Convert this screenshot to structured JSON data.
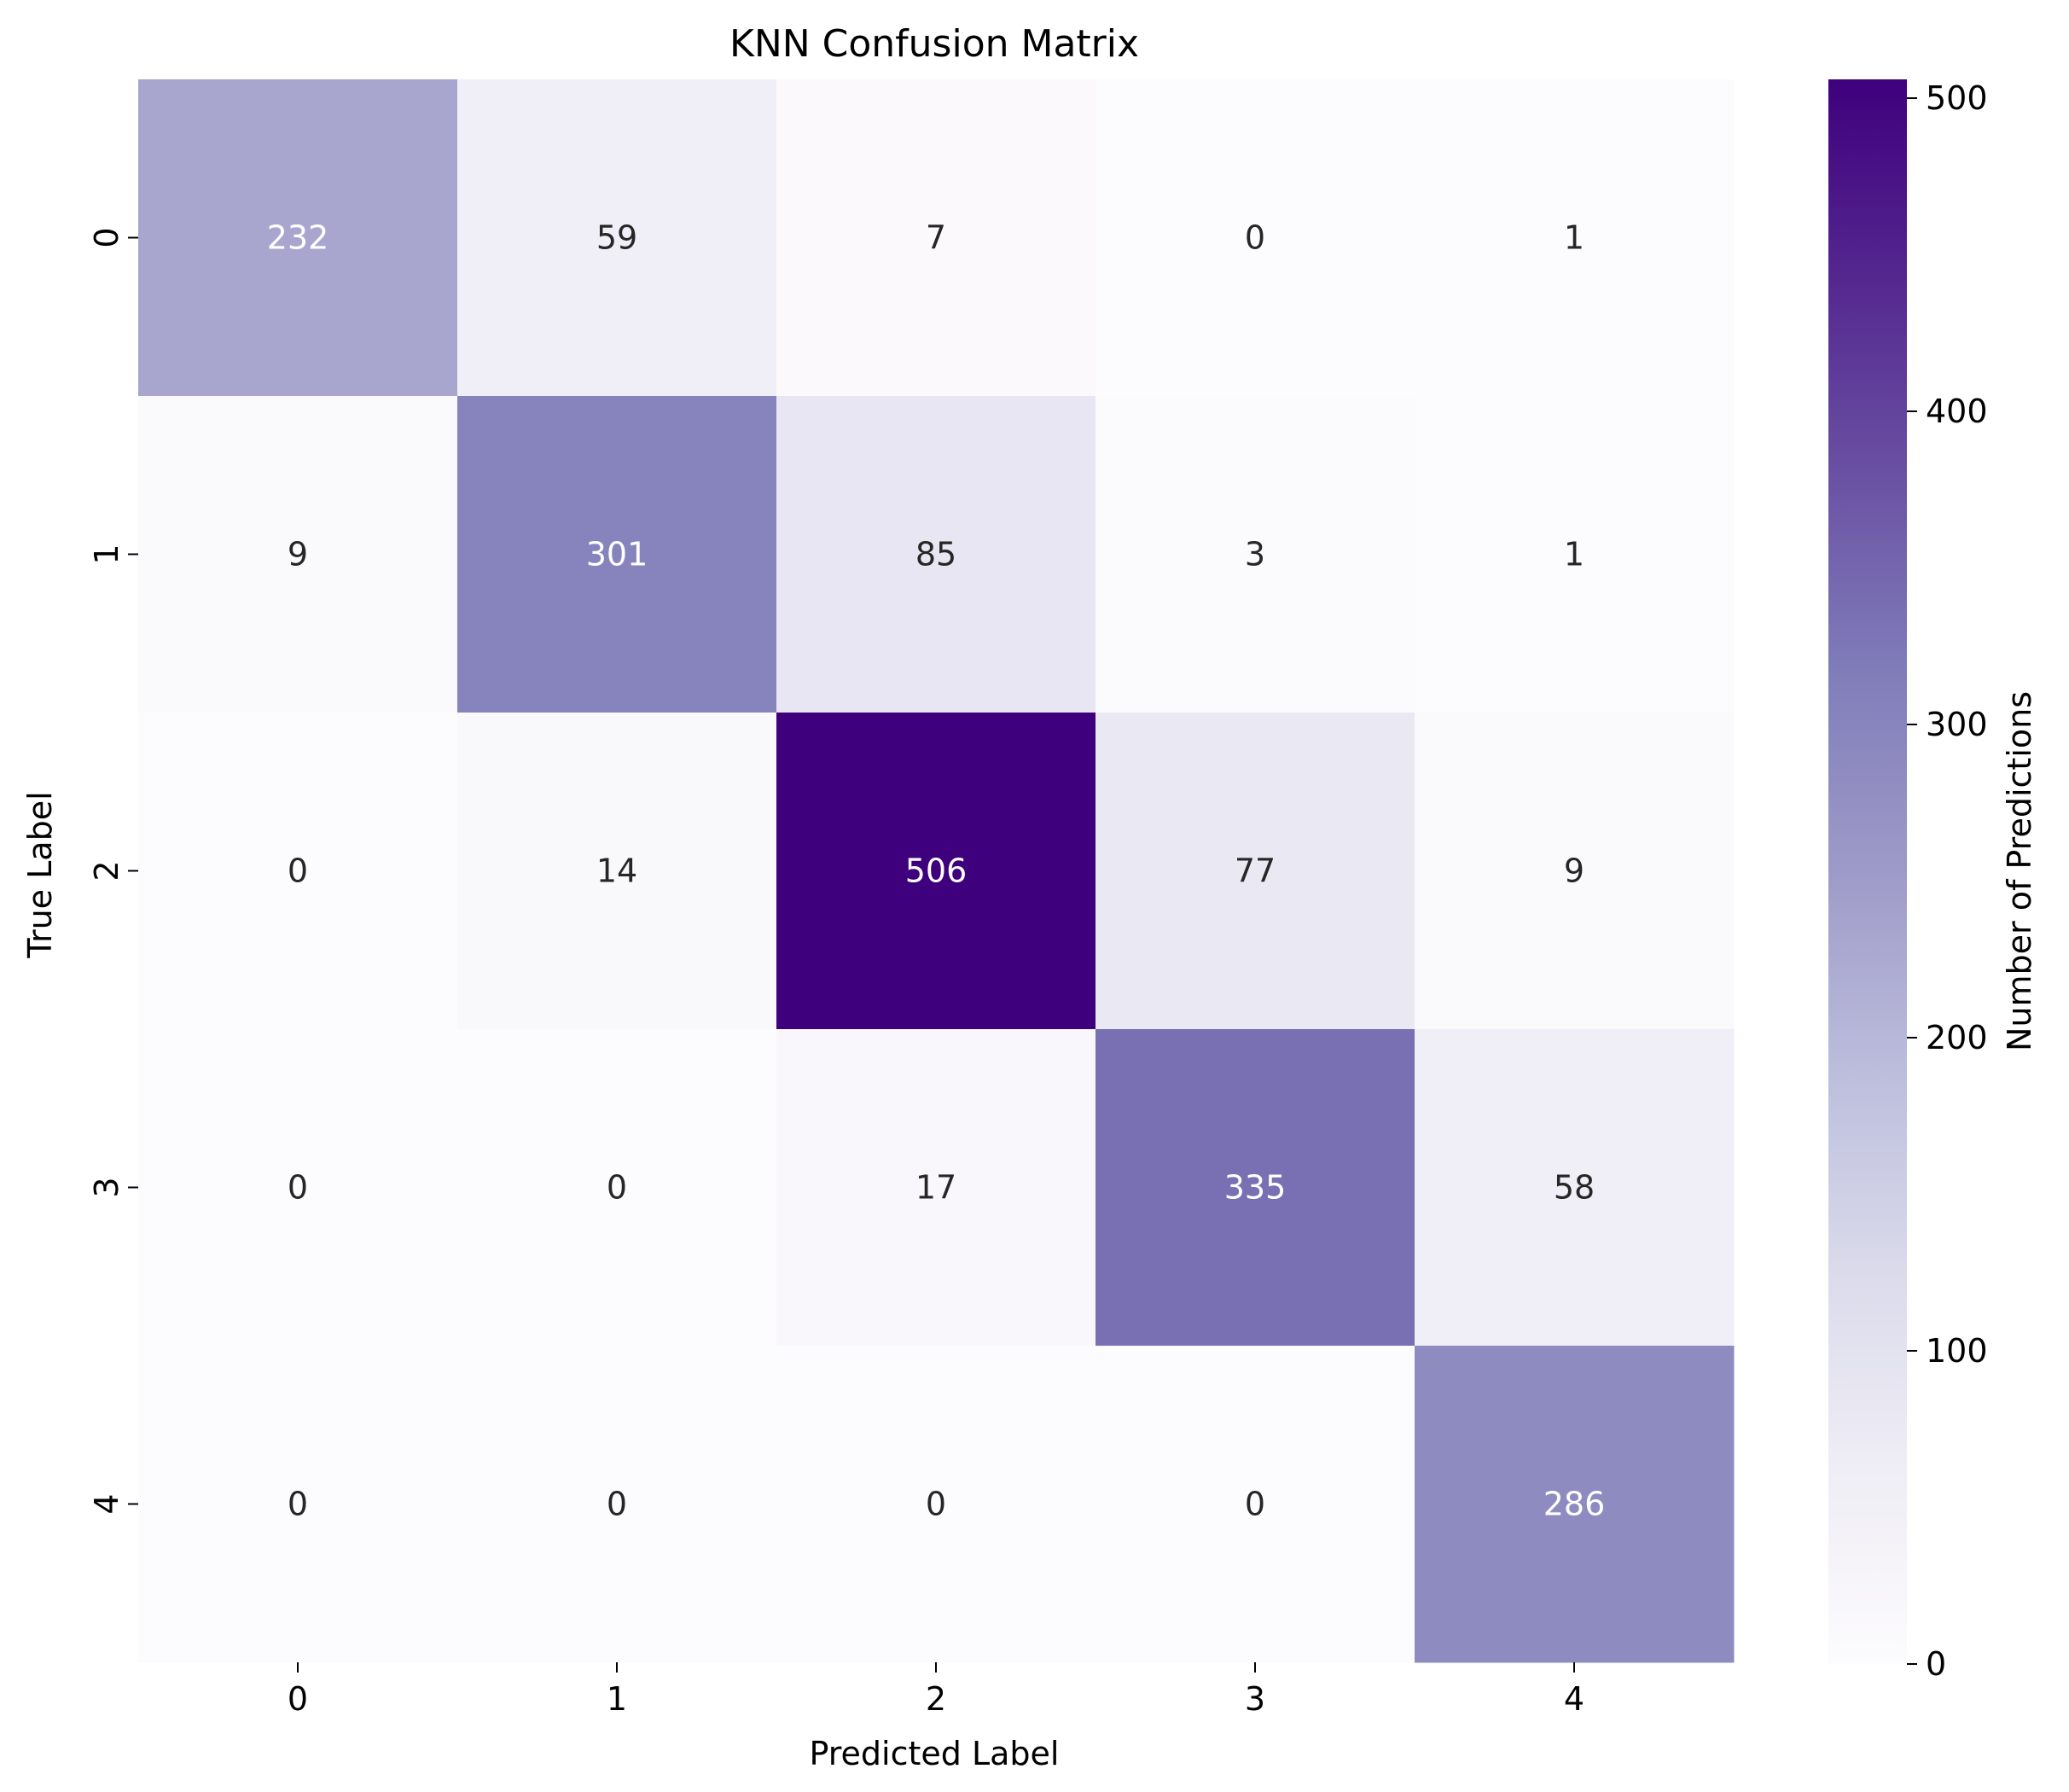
{
  "chart_data": {
    "type": "heatmap",
    "title": "KNN Confusion Matrix",
    "xlabel": "Predicted Label",
    "ylabel": "True Label",
    "x_categories": [
      "0",
      "1",
      "2",
      "3",
      "4"
    ],
    "y_categories": [
      "0",
      "1",
      "2",
      "3",
      "4"
    ],
    "values": [
      [
        232,
        59,
        7,
        0,
        1
      ],
      [
        9,
        301,
        85,
        3,
        1
      ],
      [
        0,
        14,
        506,
        77,
        9
      ],
      [
        0,
        0,
        17,
        335,
        58
      ],
      [
        0,
        0,
        0,
        0,
        286
      ]
    ],
    "colorbar": {
      "label": "Number of Predictions",
      "range": [
        0,
        506
      ],
      "ticks": [
        0,
        100,
        200,
        300,
        400,
        500
      ],
      "colormap": "Purples"
    }
  }
}
